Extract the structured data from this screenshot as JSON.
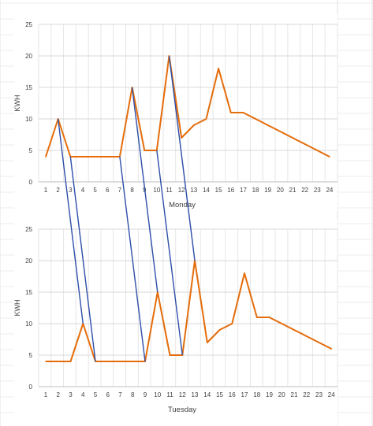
{
  "chart_data": [
    {
      "type": "line",
      "title": "",
      "xlabel": "Monday",
      "ylabel": "KWH",
      "ylim": [
        0,
        25
      ],
      "yticks": [
        0,
        5,
        10,
        15,
        20,
        25
      ],
      "categories": [
        "1",
        "2",
        "3",
        "4",
        "5",
        "6",
        "7",
        "8",
        "9",
        "10",
        "11",
        "12",
        "13",
        "14",
        "15",
        "16",
        "17",
        "18",
        "19",
        "20",
        "21",
        "22",
        "23",
        "24"
      ],
      "grid": true,
      "legend": "none",
      "series": [
        {
          "color": "#E46C0A",
          "values": [
            4,
            10,
            4,
            4,
            4,
            4,
            4,
            15,
            5,
            5,
            20,
            7,
            9,
            10,
            18,
            11,
            11,
            10,
            9,
            8,
            7,
            6,
            5,
            4
          ]
        }
      ]
    },
    {
      "type": "line",
      "title": "",
      "xlabel": "Tuesday",
      "ylabel": "KWH",
      "ylim": [
        0,
        25
      ],
      "yticks": [
        0,
        5,
        10,
        15,
        20,
        25
      ],
      "categories": [
        "1",
        "2",
        "3",
        "4",
        "5",
        "6",
        "7",
        "8",
        "9",
        "10",
        "11",
        "12",
        "13",
        "14",
        "15",
        "16",
        "17",
        "18",
        "19",
        "20",
        "21",
        "22",
        "23",
        "24"
      ],
      "grid": true,
      "legend": "none",
      "series": [
        {
          "color": "#E46C0A",
          "values": [
            4,
            4,
            4,
            10,
            4,
            4,
            4,
            4,
            4,
            15,
            5,
            5,
            20,
            7,
            9,
            10,
            18,
            11,
            11,
            10,
            9,
            8,
            7,
            6
          ]
        }
      ]
    }
  ],
  "connectors": {
    "color": "#2E4FA8",
    "description_free_pairs": [
      {
        "from": {
          "chart": 0,
          "x": "2",
          "y": 10
        },
        "to": {
          "chart": 1,
          "x": "4",
          "y": 10
        }
      },
      {
        "from": {
          "chart": 0,
          "x": "3",
          "y": 4
        },
        "to": {
          "chart": 1,
          "x": "5",
          "y": 4
        }
      },
      {
        "from": {
          "chart": 0,
          "x": "7",
          "y": 4
        },
        "to": {
          "chart": 1,
          "x": "9",
          "y": 4
        }
      },
      {
        "from": {
          "chart": 0,
          "x": "8",
          "y": 15
        },
        "to": {
          "chart": 1,
          "x": "10",
          "y": 15
        }
      },
      {
        "from": {
          "chart": 0,
          "x": "10",
          "y": 5
        },
        "to": {
          "chart": 1,
          "x": "12",
          "y": 5
        }
      },
      {
        "from": {
          "chart": 0,
          "x": "11",
          "y": 20
        },
        "to": {
          "chart": 1,
          "x": "13",
          "y": 20
        }
      }
    ]
  }
}
